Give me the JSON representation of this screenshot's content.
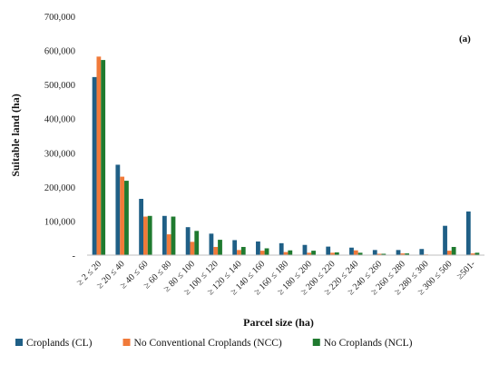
{
  "chart_data": {
    "type": "bar",
    "panel_label": "(a)",
    "xlabel": "Parcel size (ha)",
    "ylabel": "Suitable land (ha)",
    "ylim": [
      0,
      700000
    ],
    "y_ticks": [
      0,
      100000,
      200000,
      300000,
      400000,
      500000,
      600000,
      700000
    ],
    "y_tick_labels": [
      "-",
      "100,000",
      "200,000",
      "300,000",
      "400,000",
      "500,000",
      "600,000",
      "700,000"
    ],
    "grid": false,
    "legend_position": "bottom",
    "categories": [
      "≥ 2 ≤ 20",
      "≥ 20 ≤ 40",
      "≥ 40 ≤ 60",
      "≥ 60 ≤ 80",
      "≥ 80 ≤ 100",
      "≥ 100 ≤ 120",
      "≥ 120 ≤ 140",
      "≥ 140 ≤ 160",
      "≥ 160 ≤ 180",
      "≥ 180 ≤ 200",
      "≥ 200 ≤ 220",
      "≥ 220 ≤ 240",
      "≥ 240 ≤ 260",
      "≥ 260 ≤ 280",
      "≥ 280 ≤ 300",
      "≥ 300 ≤ 500",
      "≥501-"
    ],
    "series": [
      {
        "name": "Croplands (CL)",
        "color": "#1f5f86",
        "values": [
          522000,
          265000,
          165000,
          115000,
          82000,
          63000,
          44000,
          40000,
          35000,
          30000,
          25000,
          22000,
          15000,
          15000,
          18000,
          86000,
          128000
        ]
      },
      {
        "name": "No Conventional Croplands (NCC)",
        "color": "#f07a3a",
        "values": [
          582000,
          230000,
          113000,
          61000,
          39000,
          24000,
          15000,
          13000,
          9000,
          7000,
          7000,
          14000,
          4000,
          5000,
          2000,
          13000,
          5000
        ]
      },
      {
        "name": "No Croplands (NCL)",
        "color": "#1f7a2f",
        "values": [
          572000,
          218000,
          115000,
          113000,
          71000,
          45000,
          24000,
          20000,
          14000,
          13000,
          8000,
          7000,
          4000,
          5000,
          1000,
          24000,
          7000
        ]
      }
    ]
  }
}
